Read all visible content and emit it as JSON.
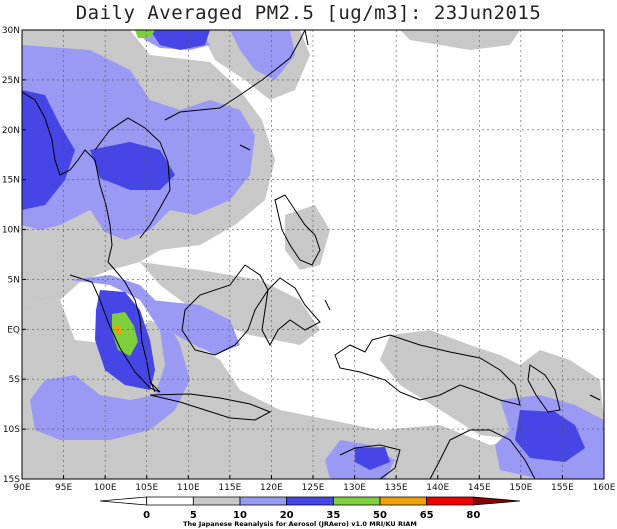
{
  "title": "Daily Averaged PM2.5 [ug/m3]: 23Jun2015",
  "map": {
    "lon_range": [
      90,
      160
    ],
    "lat_range": [
      -15,
      30
    ],
    "lon_ticks": [
      {
        "v": 90,
        "label": "90E"
      },
      {
        "v": 95,
        "label": "95E"
      },
      {
        "v": 100,
        "label": "100E"
      },
      {
        "v": 105,
        "label": "105E"
      },
      {
        "v": 110,
        "label": "110E"
      },
      {
        "v": 115,
        "label": "115E"
      },
      {
        "v": 120,
        "label": "120E"
      },
      {
        "v": 125,
        "label": "125E"
      },
      {
        "v": 130,
        "label": "130E"
      },
      {
        "v": 135,
        "label": "135E"
      },
      {
        "v": 140,
        "label": "140E"
      },
      {
        "v": 145,
        "label": "145E"
      },
      {
        "v": 150,
        "label": "150E"
      },
      {
        "v": 155,
        "label": "155E"
      },
      {
        "v": 160,
        "label": "160E"
      }
    ],
    "lat_ticks": [
      {
        "v": 30,
        "label": "30N"
      },
      {
        "v": 25,
        "label": "25N"
      },
      {
        "v": 20,
        "label": "20N"
      },
      {
        "v": 15,
        "label": "15N"
      },
      {
        "v": 10,
        "label": "10N"
      },
      {
        "v": 5,
        "label": "5N"
      },
      {
        "v": 0,
        "label": "EQ"
      },
      {
        "v": -5,
        "label": "5S"
      },
      {
        "v": -10,
        "label": "10S"
      },
      {
        "v": -15,
        "label": "15S"
      }
    ],
    "gridlines": true
  },
  "colorbar": {
    "levels": [
      "0",
      "5",
      "10",
      "20",
      "35",
      "50",
      "65",
      "80"
    ],
    "colors": [
      "#ffffff",
      "#ffffff",
      "#c8c8c8",
      "#9a9af5",
      "#4646e6",
      "#7dcf3c",
      "#f0a000",
      "#f00000",
      "#8c0000"
    ],
    "credit": "The Japanese Reanalysis for Aerosol (JRAero) v1.0 MRI/KU RIAM"
  }
}
